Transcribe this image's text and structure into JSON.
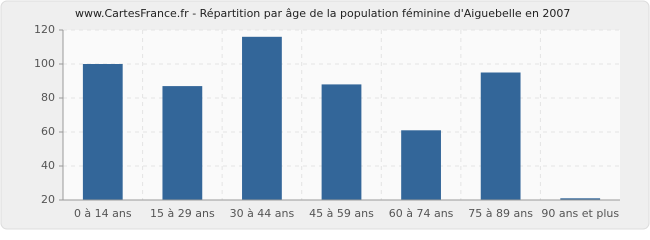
{
  "chart_data": {
    "type": "bar",
    "title": "www.CartesFrance.fr - Répartition par âge de la population féminine d'Aiguebelle en 2007",
    "categories": [
      "0 à 14 ans",
      "15 à 29 ans",
      "30 à 44 ans",
      "45 à 59 ans",
      "60 à 74 ans",
      "75 à 89 ans",
      "90 ans et plus"
    ],
    "values": [
      100,
      87,
      116,
      88,
      61,
      95,
      21
    ],
    "color": "#336699",
    "ylim": [
      20,
      120
    ],
    "yticks": [
      20,
      40,
      60,
      80,
      100,
      120
    ],
    "grid": true
  }
}
